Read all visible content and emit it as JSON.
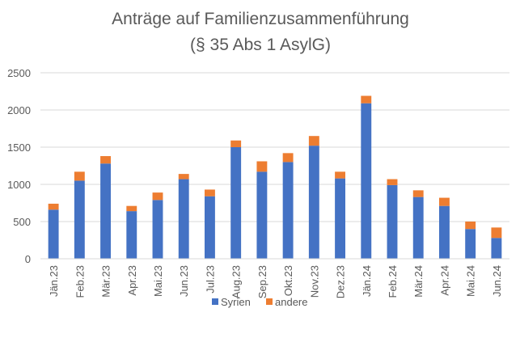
{
  "chart_data": {
    "type": "bar",
    "stacked": true,
    "title_lines": [
      "Anträge auf Familienzusammenführung",
      "(§ 35 Abs 1 AsylG)"
    ],
    "categories": [
      "Jän.23",
      "Feb.23",
      "Mär.23",
      "Apr.23",
      "Mai.23",
      "Jun.23",
      "Jul.23",
      "Aug.23",
      "Sep.23",
      "Okt.23",
      "Nov.23",
      "Dez.23",
      "Jän.24",
      "Feb.24",
      "Mär.24",
      "Apr.24",
      "Mai.24",
      "Jun.24"
    ],
    "series": [
      {
        "name": "Syrien",
        "color": "#4472C4",
        "values": [
          660,
          1050,
          1280,
          640,
          790,
          1070,
          840,
          1500,
          1170,
          1300,
          1520,
          1080,
          2090,
          990,
          830,
          710,
          400,
          280
        ]
      },
      {
        "name": "andere",
        "color": "#ED7D31",
        "values": [
          80,
          120,
          100,
          70,
          100,
          70,
          90,
          90,
          140,
          120,
          130,
          90,
          100,
          80,
          90,
          110,
          100,
          140
        ]
      }
    ],
    "ylim": [
      0,
      2500
    ],
    "yticks": [
      "0",
      "500",
      "1000",
      "1500",
      "2000",
      "2500"
    ],
    "grid": true,
    "legend_position": "bottom"
  }
}
